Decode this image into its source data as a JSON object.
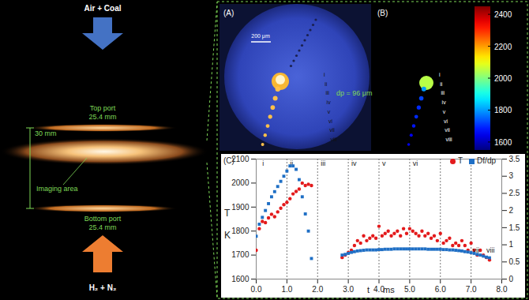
{
  "left_panel": {
    "top_flow": "Air + Coal",
    "top_port": [
      "Top port",
      "25.4 mm"
    ],
    "gap": "30 mm",
    "imaging": "Imaging area",
    "bottom_port": [
      "Bottom port",
      "25.4 mm"
    ],
    "bottom_flow": "H₂ + N₂"
  },
  "panel_a": {
    "label": "(A)",
    "scale_bar": "200 μm",
    "particle": "dp = 96 μm",
    "frames": [
      "i",
      "ii",
      "iii",
      "iv",
      "v",
      "vi",
      "vii",
      "viii"
    ]
  },
  "panel_b": {
    "label": "(B)",
    "frames": [
      "i",
      "ii",
      "iii",
      "iv",
      "v",
      "vi",
      "vii",
      "viii"
    ],
    "frame_temperatures": [
      2050,
      1800,
      1720,
      1700,
      1700,
      1680,
      1660,
      1650
    ],
    "colorbar": {
      "range": [
        1550,
        2450
      ],
      "ticks": [
        1600,
        1800,
        2000,
        2200,
        2400
      ]
    }
  },
  "chart_data": {
    "type": "scatter",
    "title": "(C)",
    "xlabel": "t",
    "xunit": "ms",
    "ylabel": "T",
    "yunit": "K",
    "xlim": [
      0,
      8
    ],
    "xticks": [
      {
        "value": 0,
        "label": "0.0"
      },
      {
        "value": 1,
        "label": "1.0"
      },
      {
        "value": 2,
        "label": "2.0"
      },
      {
        "value": 3,
        "label": "3.0"
      },
      {
        "value": 4,
        "label": "4.0"
      },
      {
        "value": 5,
        "label": "5.0"
      },
      {
        "value": 6,
        "label": "6.0"
      },
      {
        "value": 7,
        "label": "7.0"
      },
      {
        "value": 8,
        "label": "8.0"
      }
    ],
    "ylim": [
      1600,
      2100
    ],
    "yticks": [
      1600,
      1700,
      1800,
      1900,
      2000,
      2100
    ],
    "y2lim": [
      0,
      3.5
    ],
    "y2ticks": [
      0,
      0.5,
      1,
      1.5,
      2,
      2.5,
      3,
      3.5
    ],
    "legend": "top-right",
    "series": [
      {
        "name": "T",
        "color": "#e31a1c",
        "marker": "circle",
        "x": [
          0,
          0.1,
          0.2,
          0.3,
          0.4,
          0.5,
          0.6,
          0.7,
          0.8,
          0.9,
          1.0,
          1.1,
          1.2,
          1.3,
          1.4,
          1.5,
          1.6,
          1.7,
          1.8,
          2.8,
          2.9,
          3.0,
          3.1,
          3.2,
          3.3,
          3.4,
          3.5,
          3.6,
          3.7,
          3.8,
          3.9,
          4.0,
          4.1,
          4.2,
          4.3,
          4.4,
          4.5,
          4.6,
          4.7,
          4.8,
          4.9,
          5.0,
          5.1,
          5.2,
          5.3,
          5.4,
          5.5,
          5.6,
          5.7,
          5.8,
          5.9,
          6.0,
          6.1,
          6.2,
          6.3,
          6.4,
          6.5,
          6.6,
          6.7,
          6.8,
          6.9,
          7.0,
          7.1,
          7.2,
          7.3,
          7.4,
          7.5,
          7.6
        ],
        "values": [
          1720,
          1810,
          1840,
          1835,
          1855,
          1870,
          1860,
          1880,
          1895,
          1910,
          1920,
          1935,
          1955,
          1965,
          1975,
          2000,
          1990,
          1995,
          1990,
          1690,
          1700,
          1710,
          1720,
          1740,
          1760,
          1750,
          1780,
          1760,
          1770,
          1780,
          1770,
          1820,
          1780,
          1790,
          1800,
          1780,
          1790,
          1800,
          1780,
          1810,
          1790,
          1810,
          1800,
          1790,
          1780,
          1800,
          1780,
          1790,
          1770,
          1780,
          1760,
          1790,
          1750,
          1760,
          1770,
          1740,
          1750,
          1740,
          1760,
          1740,
          1720,
          1750,
          1720,
          1700,
          1720,
          1700,
          1690,
          1680
        ]
      },
      {
        "name": "Df/dp",
        "color": "#1f6fc5",
        "marker": "square",
        "axis": "y2",
        "x": [
          0,
          0.1,
          0.2,
          0.3,
          0.4,
          0.5,
          0.6,
          0.7,
          0.8,
          0.9,
          1.0,
          1.1,
          1.2,
          1.3,
          1.4,
          1.5,
          1.6,
          1.7,
          1.8,
          2.8,
          2.9,
          3.0,
          3.1,
          3.2,
          3.3,
          3.4,
          3.5,
          3.6,
          3.7,
          3.8,
          3.9,
          4.0,
          4.1,
          4.2,
          4.3,
          4.4,
          4.5,
          4.6,
          4.7,
          4.8,
          4.9,
          5.0,
          5.1,
          5.2,
          5.3,
          5.4,
          5.5,
          5.6,
          5.7,
          5.8,
          5.9,
          6.0,
          6.1,
          6.2,
          6.3,
          6.4,
          6.5,
          6.6,
          6.7,
          6.8,
          6.9,
          7.0,
          7.1,
          7.2,
          7.3,
          7.4,
          7.5,
          7.6
        ],
        "values": [
          1.25,
          1.6,
          1.8,
          2.0,
          2.2,
          2.4,
          2.55,
          2.7,
          2.85,
          3.0,
          3.15,
          3.3,
          3.3,
          3.2,
          2.9,
          2.4,
          1.9,
          1.4,
          0.6,
          0.7,
          0.72,
          0.75,
          0.78,
          0.8,
          0.82,
          0.83,
          0.84,
          0.85,
          0.85,
          0.85,
          0.85,
          0.86,
          0.86,
          0.87,
          0.87,
          0.87,
          0.88,
          0.88,
          0.88,
          0.88,
          0.88,
          0.88,
          0.88,
          0.88,
          0.88,
          0.88,
          0.88,
          0.87,
          0.87,
          0.87,
          0.87,
          0.87,
          0.86,
          0.86,
          0.85,
          0.85,
          0.84,
          0.83,
          0.82,
          0.8,
          0.79,
          0.77,
          0.75,
          0.72,
          0.7,
          0.67,
          0.64,
          0.62
        ]
      }
    ],
    "vlines": [
      1,
      2,
      3,
      4,
      5,
      6,
      7
    ],
    "annotations": [
      {
        "x": 0.2,
        "y": 2080,
        "text": "i"
      },
      {
        "x": 1.1,
        "y": 2080,
        "text": "ii"
      },
      {
        "x": 2.1,
        "y": 2080,
        "text": "iii"
      },
      {
        "x": 3.1,
        "y": 2080,
        "text": "iv"
      },
      {
        "x": 4.1,
        "y": 2080,
        "text": "v"
      },
      {
        "x": 5.1,
        "y": 2080,
        "text": "vi"
      },
      {
        "x": 7.05,
        "y": 1720,
        "text": "vii"
      },
      {
        "x": 7.5,
        "y": 1720,
        "text": "viii"
      }
    ]
  }
}
